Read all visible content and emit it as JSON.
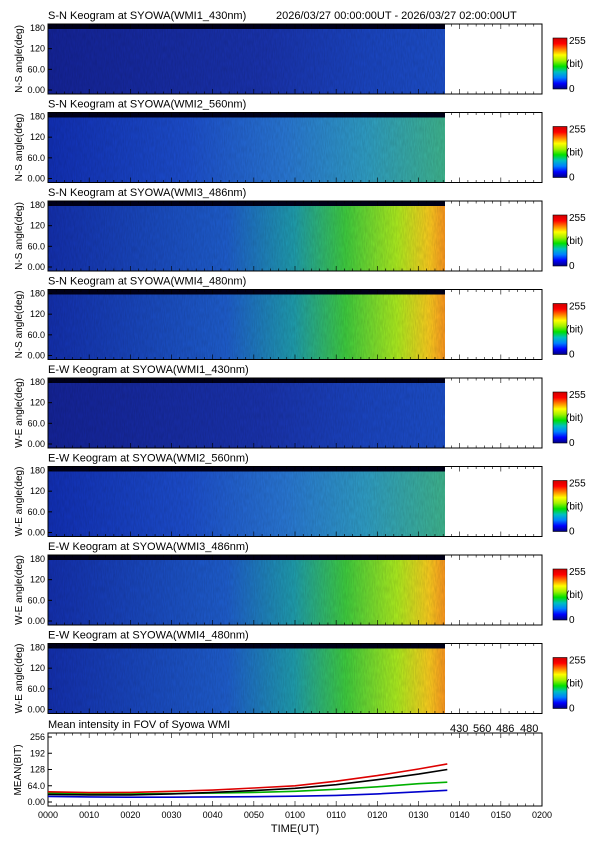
{
  "header": {
    "time_range": "2026/03/27 00:00:00UT - 2026/03/27 02:00:00UT"
  },
  "keograms": [
    {
      "title": "S-N Keogram at SYOWA(WMI1_430nm)",
      "ylabel": "N-S angle(deg)",
      "intensity": "low",
      "band": "430"
    },
    {
      "title": "S-N Keogram at SYOWA(WMI2_560nm)",
      "ylabel": "N-S angle(deg)",
      "intensity": "low-mid",
      "band": "560"
    },
    {
      "title": "S-N Keogram at SYOWA(WMI3_486nm)",
      "ylabel": "N-S angle(deg)",
      "intensity": "high",
      "band": "486"
    },
    {
      "title": "S-N Keogram at SYOWA(WMI4_480nm)",
      "ylabel": "N-S angle(deg)",
      "intensity": "high",
      "band": "480"
    },
    {
      "title": "E-W Keogram at SYOWA(WMI1_430nm)",
      "ylabel": "W-E angle(deg)",
      "intensity": "low",
      "band": "430"
    },
    {
      "title": "E-W Keogram at SYOWA(WMI2_560nm)",
      "ylabel": "W-E angle(deg)",
      "intensity": "low-mid",
      "band": "560"
    },
    {
      "title": "E-W Keogram at SYOWA(WMI3_486nm)",
      "ylabel": "W-E angle(deg)",
      "intensity": "high",
      "band": "486"
    },
    {
      "title": "E-W Keogram at SYOWA(WMI4_480nm)",
      "ylabel": "W-E angle(deg)",
      "intensity": "high",
      "band": "480"
    }
  ],
  "keogram_axis": {
    "yticks": [
      "180",
      "120",
      "60.0",
      "0.00"
    ],
    "ylim": [
      0,
      180
    ]
  },
  "colorbar": {
    "max_label": "255",
    "unit_label": "(bit)",
    "min_label": "0",
    "colors": [
      "#000080",
      "#0000ff",
      "#0080ff",
      "#00c0c0",
      "#00e000",
      "#a0f000",
      "#ffff00",
      "#ff8000",
      "#ff0000",
      "#d00000"
    ]
  },
  "colors": {
    "series_430": "#0000cc",
    "series_560": "#00b000",
    "series_486": "#dd0000",
    "series_480": "#000000",
    "keogram_bg_low": "#1a2ea8",
    "keogram_bg_mid": "#1f5fd0",
    "keogram_bg_high": "#ffa020"
  },
  "mean_chart": {
    "title": "Mean intensity in FOV of Syowa WMI",
    "ylabel": "MEAN(BIT)",
    "xlabel": "TIME(UT)",
    "legend": [
      {
        "label": "430",
        "color": "#0000cc"
      },
      {
        "label": "560",
        "color": "#00b000"
      },
      {
        "label": "486",
        "color": "#dd0000"
      },
      {
        "label": "480",
        "color": "#000000"
      }
    ]
  },
  "chart_data": {
    "type": "line",
    "title": "Mean intensity in FOV of Syowa WMI",
    "xlabel": "TIME(UT)",
    "ylabel": "MEAN(BIT)",
    "x_ticks": [
      "0000",
      "0010",
      "0020",
      "0030",
      "0040",
      "0050",
      "0100",
      "0110",
      "0120",
      "0130",
      "0140",
      "0150",
      "0200"
    ],
    "y_ticks": [
      "256",
      "192",
      "128",
      "64.0",
      "0.00"
    ],
    "xlim": [
      0,
      120
    ],
    "ylim": [
      0,
      256
    ],
    "series": [
      {
        "name": "430",
        "x": [
          0,
          10,
          20,
          30,
          40,
          50,
          60,
          70,
          80,
          90,
          97
        ],
        "values": [
          22,
          20,
          19,
          19,
          20,
          21,
          23,
          26,
          32,
          40,
          46
        ]
      },
      {
        "name": "560",
        "x": [
          0,
          10,
          20,
          30,
          40,
          50,
          60,
          70,
          80,
          90,
          97
        ],
        "values": [
          35,
          32,
          32,
          33,
          35,
          38,
          42,
          50,
          60,
          72,
          78
        ]
      },
      {
        "name": "486",
        "x": [
          0,
          10,
          20,
          30,
          40,
          50,
          60,
          70,
          80,
          90,
          97
        ],
        "values": [
          40,
          37,
          38,
          42,
          47,
          55,
          64,
          82,
          104,
          130,
          150
        ]
      },
      {
        "name": "480",
        "x": [
          0,
          10,
          20,
          30,
          40,
          50,
          60,
          70,
          80,
          90,
          97
        ],
        "values": [
          30,
          28,
          28,
          32,
          38,
          45,
          54,
          68,
          88,
          110,
          128
        ]
      }
    ],
    "legend_position": "top-right",
    "grid": false
  }
}
